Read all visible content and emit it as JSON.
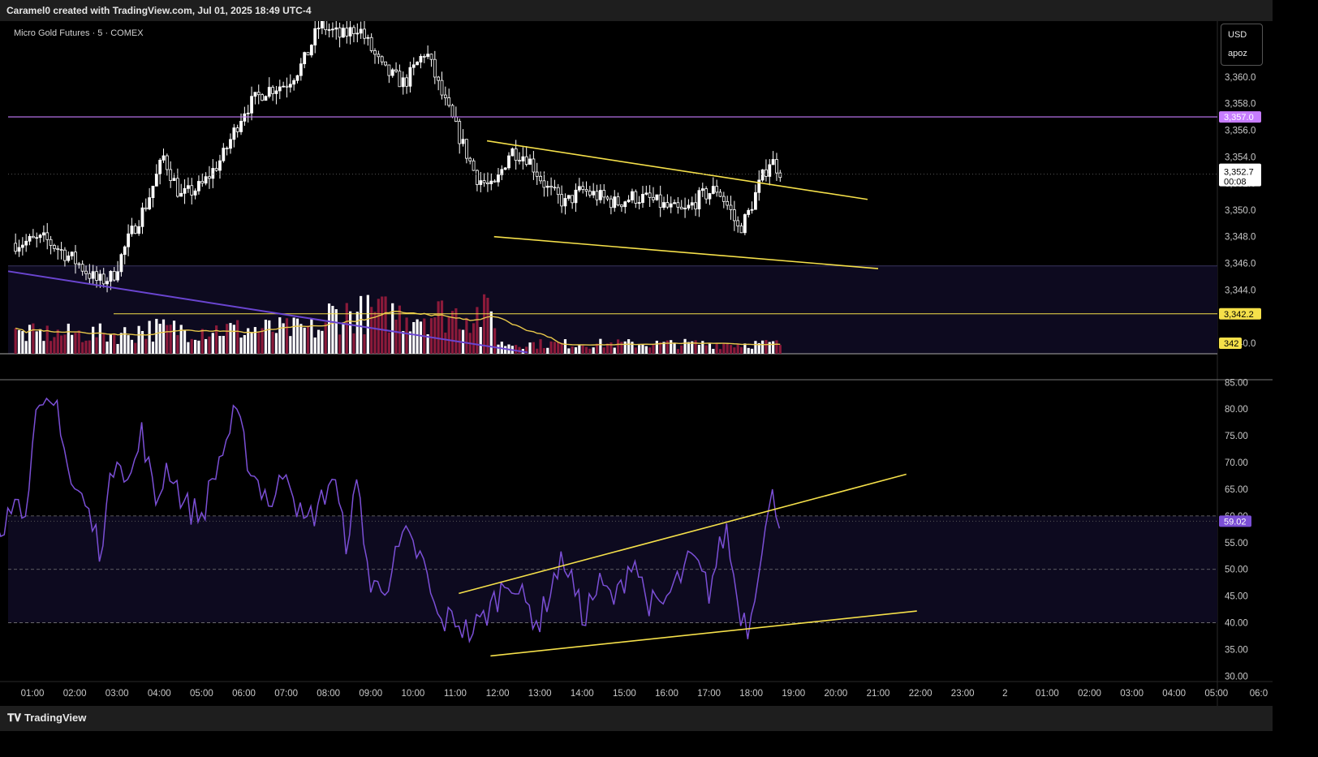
{
  "header": {
    "attribution": "Caramel0 created with TradingView.com, Jul 01, 2025 18:49 UTC-4"
  },
  "symbol_line": "Micro Gold Futures · 5 · COMEX",
  "currency_box": {
    "currency": "USD",
    "user": "apoz"
  },
  "footer": {
    "brand": "TradingView"
  },
  "colors": {
    "up": "#ffffff",
    "down": "#ffffff",
    "volume_up": "#ffffff",
    "volume_down": "#8b1a3a",
    "resistance": "#c77dff",
    "channel": "#f5e04a",
    "rsi": "#7b4fd6",
    "vol_ma": "#e8c84a"
  },
  "chart_data": [
    {
      "type": "candlestick",
      "title": "Micro Gold Futures · 5 · COMEX",
      "x_ticks": [
        "01:00",
        "02:00",
        "03:00",
        "04:00",
        "05:00",
        "06:00",
        "07:00",
        "08:00",
        "09:00",
        "10:00",
        "11:00",
        "12:00",
        "13:00",
        "14:00",
        "15:00",
        "16:00",
        "17:00",
        "18:00",
        "19:00",
        "20:00",
        "21:00",
        "22:00",
        "23:00",
        "2",
        "01:00",
        "02:00",
        "03:00",
        "04:00",
        "05:00",
        "06:0"
      ],
      "y_ticks": [
        "3,360.0",
        "3,358.0",
        "3,356.0",
        "3,354.0",
        "3,352.0",
        "3,350.0",
        "3,348.0",
        "3,346.0",
        "3,344.0",
        "3,340.0"
      ],
      "ylim": [
        3339.2,
        3364.2
      ],
      "last_price": "3,352.7",
      "countdown": "00:08",
      "levels": [
        {
          "name": "resistance",
          "price": 3357.0,
          "label": "3,357.0"
        },
        {
          "name": "support",
          "price": 3342.2,
          "label": "3,342.2"
        },
        {
          "name": "zone-top",
          "price": 3345.8
        }
      ],
      "volume_label": "342",
      "series": [
        {
          "name": "price",
          "values_hint": "5-minute candles 00:30–18:50, high ~3364, low ~3345.6"
        }
      ],
      "channel": {
        "upper": [
          [
            "11:45",
            3355.2
          ],
          [
            "20:45",
            3350.8
          ]
        ],
        "lower": [
          [
            "11:55",
            3348.0
          ],
          [
            "21:00",
            3345.6
          ]
        ]
      }
    },
    {
      "type": "line",
      "title": "",
      "y_ticks": [
        "85.00",
        "80.00",
        "75.00",
        "70.00",
        "65.00",
        "60.00",
        "55.00",
        "50.00",
        "45.00",
        "40.00",
        "35.00",
        "30.00"
      ],
      "ylim": [
        29,
        85.5
      ],
      "bands": [
        40,
        60
      ],
      "mid": 50,
      "last_value": "59.02",
      "rising_channel": {
        "upper": [
          [
            "11:05",
            45.5
          ],
          [
            "21:40",
            67.8
          ]
        ],
        "lower": [
          [
            "11:50",
            33.8
          ],
          [
            "21:55",
            42.2
          ]
        ]
      }
    }
  ]
}
